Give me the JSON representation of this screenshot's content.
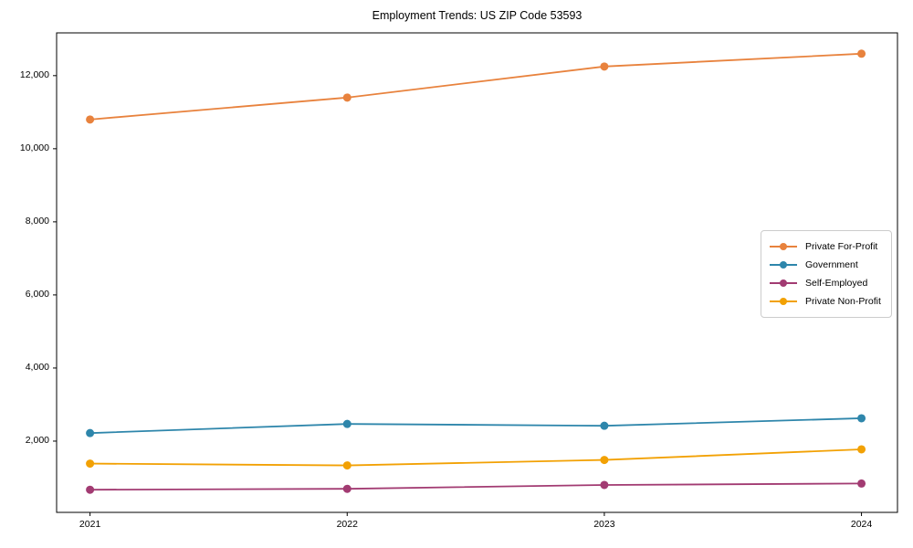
{
  "chart_data": {
    "type": "line",
    "title": "Employment Trends: US ZIP Code 53593",
    "xlabel": "",
    "ylabel": "",
    "x": [
      2021,
      2022,
      2023,
      2024
    ],
    "x_tick_labels": [
      "2021",
      "2022",
      "2023",
      "2024"
    ],
    "y_ticks": [
      {
        "value": 2000,
        "label": "2,000"
      },
      {
        "value": 4000,
        "label": "4,000"
      },
      {
        "value": 6000,
        "label": "6,000"
      },
      {
        "value": 8000,
        "label": "8,000"
      },
      {
        "value": 10000,
        "label": "10,000"
      },
      {
        "value": 12000,
        "label": "12,000"
      }
    ],
    "xlim": [
      2020.87,
      2024.14
    ],
    "ylim": [
      50,
      13170
    ],
    "grid": false,
    "legend_position": "center-right",
    "series": [
      {
        "name": "Private For-Profit",
        "color": "#E8823D",
        "values": [
          10800,
          11400,
          12250,
          12600
        ]
      },
      {
        "name": "Government",
        "color": "#2E86AB",
        "values": [
          2220,
          2470,
          2420,
          2625
        ]
      },
      {
        "name": "Self-Employed",
        "color": "#A23B72",
        "values": [
          670,
          695,
          800,
          840
        ]
      },
      {
        "name": "Private Non-Profit",
        "color": "#F2A104",
        "values": [
          1385,
          1335,
          1485,
          1775
        ]
      }
    ]
  }
}
